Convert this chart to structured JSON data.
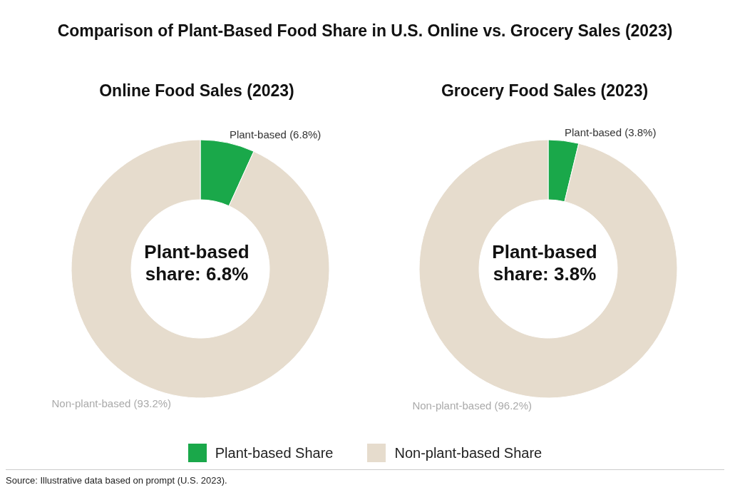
{
  "chart_data": [
    {
      "type": "other",
      "title": "Comparison of Plant-Based Food Share in U.S. Online vs. Grocery Sales (2023)",
      "annotations": [
        "Source: Illustrative data based on prompt (U.S. 2023)."
      ]
    },
    {
      "type": "donut",
      "title": "Online Food Sales (2023)",
      "categories": [
        "Plant-based Share",
        "Non-plant-based Share"
      ],
      "values": [
        6.8,
        93.2
      ],
      "colors": [
        "#1aa84a",
        "#e6dccd"
      ],
      "value_labels": [
        "Plant-based (6.8%)",
        "Non-plant-based (93.2%)"
      ],
      "annotations": [
        "Plant-based share: 6.8%"
      ],
      "legend": "bottom"
    },
    {
      "type": "donut",
      "title": "Grocery Food Sales (2023)",
      "categories": [
        null,
        null
      ],
      "values": [
        3.8,
        96.2
      ],
      "colors": [
        "#1aa84a",
        "#e6dccd"
      ],
      "value_labels": [
        "Plant-based (3.8%)",
        "Non-plant-based (96.2%)"
      ],
      "annotations": [
        "Plant-based share: 3.8%"
      ]
    }
  ]
}
